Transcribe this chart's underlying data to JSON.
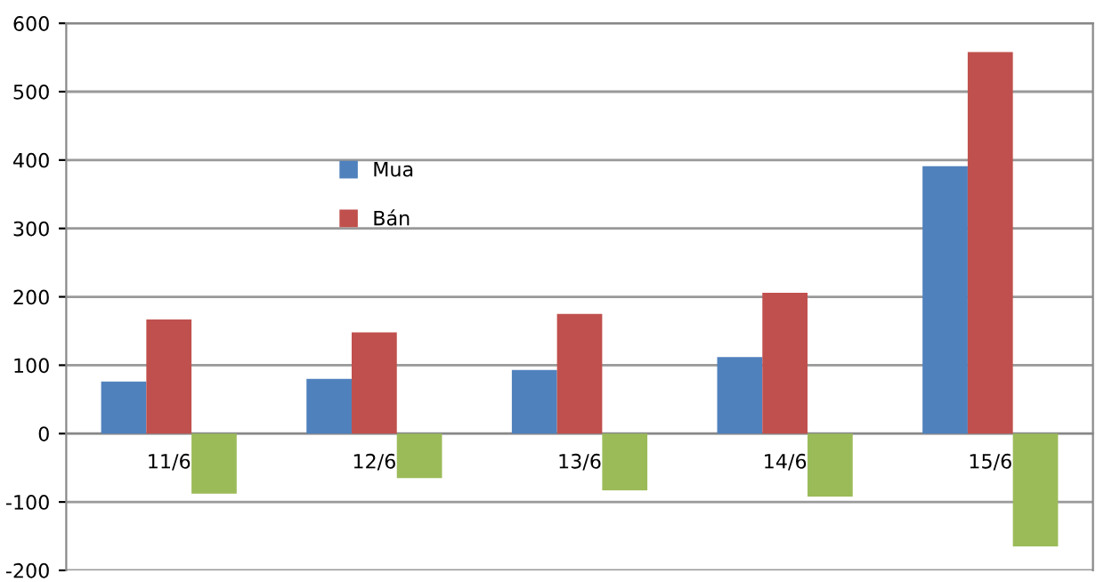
{
  "chart_data": {
    "type": "bar",
    "categories": [
      "11/6",
      "12/6",
      "13/6",
      "14/6",
      "15/6"
    ],
    "series": [
      {
        "name": "Mua",
        "color": "#4f81bd",
        "values": [
          76,
          80,
          93,
          112,
          391
        ]
      },
      {
        "name": "Bán",
        "color": "#c0504d",
        "values": [
          167,
          148,
          175,
          206,
          558
        ]
      },
      {
        "color": "#9bbb59",
        "values": [
          -88,
          -65,
          -83,
          -92,
          -165
        ]
      }
    ],
    "ylim": [
      -200,
      600
    ],
    "yticks": [
      -200,
      -100,
      0,
      100,
      200,
      300,
      400,
      500,
      600
    ],
    "grid": "y",
    "legend": "top left"
  }
}
